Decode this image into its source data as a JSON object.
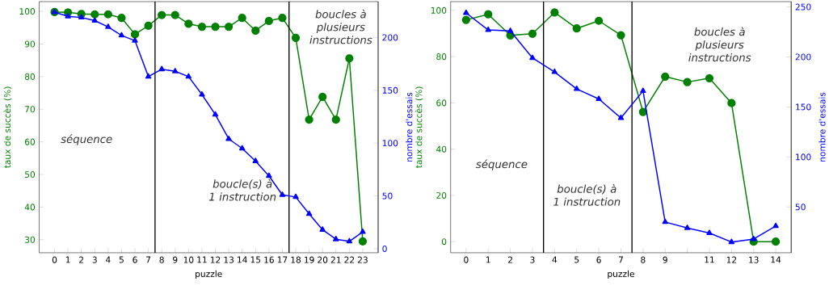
{
  "chart_data": [
    {
      "type": "line",
      "xlabel": "puzzle",
      "ylabel": "taux de succès (%)",
      "y2label": "nombre d'essais",
      "categories": [
        "0",
        "1",
        "2",
        "3",
        "4",
        "5",
        "6",
        "7",
        "8",
        "9",
        "10",
        "11",
        "12",
        "13",
        "14",
        "15",
        "16",
        "17",
        "18",
        "19",
        "20",
        "21",
        "22",
        "23"
      ],
      "series": [
        {
          "color": "#008000",
          "marker": "circle",
          "values": [
            99.8,
            99.7,
            99.2,
            99.1,
            99.1,
            98,
            93,
            95.6,
            98.9,
            98.9,
            96.2,
            95.3,
            95.3,
            95.3,
            98,
            94.1,
            97.1,
            98,
            91.9,
            66.8,
            73.8,
            66.8,
            85.6,
            29.5
          ]
        },
        {
          "color": "#0000ff",
          "marker": "triangle",
          "axis": "y2",
          "values": [
            224,
            220,
            219,
            216,
            210,
            202,
            197,
            163,
            170,
            168,
            163,
            146,
            127,
            104,
            95,
            83,
            69,
            51,
            49,
            33,
            18,
            9,
            7,
            16
          ]
        }
      ],
      "ylim": [
        26,
        103
      ],
      "yticks": [
        30,
        40,
        50,
        60,
        70,
        80,
        90,
        100
      ],
      "y2lim": [
        -3.8,
        234
      ],
      "y2ticks": [
        0,
        50,
        100,
        150,
        200
      ],
      "annotations": [
        "séquence",
        "boucle(s) à 1 instruction",
        "boucles à plusieurs instructions"
      ]
    },
    {
      "type": "line",
      "xlabel": "puzzle",
      "ylabel": "taux de succès (%)",
      "y2label": "nombre d'essais",
      "categories": [
        "0",
        "1",
        "2",
        "3",
        "4",
        "5",
        "6",
        "7",
        "8",
        "9",
        null,
        "11",
        "12",
        "13",
        "14"
      ],
      "series": [
        {
          "color": "#008000",
          "marker": "circle",
          "values": [
            95.9,
            98.3,
            89.2,
            89.9,
            99.1,
            92.2,
            95.5,
            89.3,
            56.1,
            71.4,
            69,
            70.7,
            59.9,
            0,
            0
          ]
        },
        {
          "color": "#0000ff",
          "marker": "triangle",
          "axis": "y2",
          "values": [
            244,
            227,
            226,
            199,
            185,
            168,
            158,
            139,
            166,
            35,
            29,
            24,
            15,
            18,
            31
          ]
        }
      ],
      "ylim": [
        -4.8,
        103.8
      ],
      "yticks": [
        0,
        20,
        40,
        60,
        80,
        100
      ],
      "y2lim": [
        4.3,
        255.3
      ],
      "y2ticks": [
        50,
        100,
        150,
        200,
        250
      ],
      "annotations": [
        "séquence",
        "boucle(s) à 1 instruction",
        "boucles à plusieurs instructions"
      ]
    }
  ]
}
